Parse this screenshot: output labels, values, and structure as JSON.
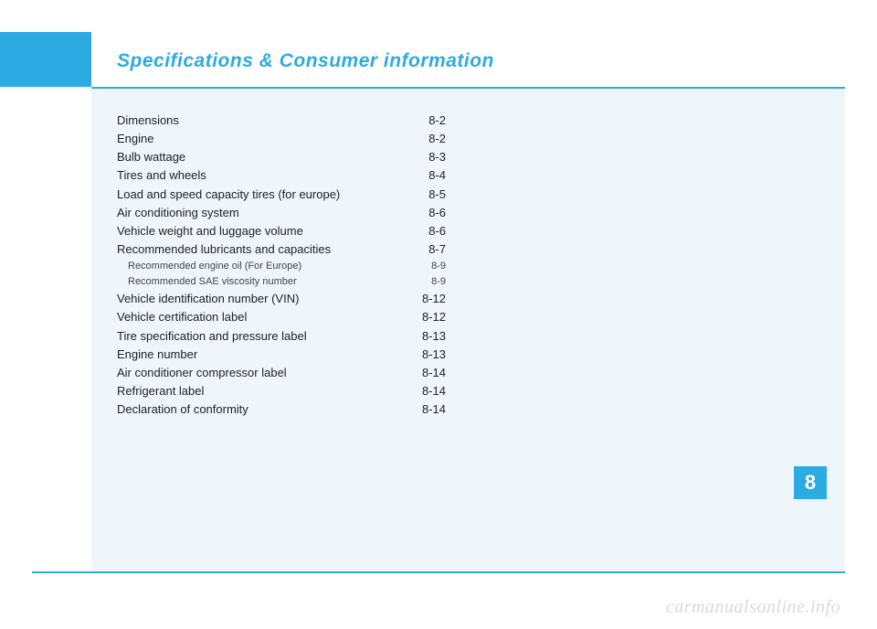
{
  "title": {
    "text": "Specifications & Consumer information",
    "color": "#2cabe3"
  },
  "chapter_badge": "8",
  "colors": {
    "accent": "#2cabe3",
    "content_bg": "#eef6fb",
    "page_bg": "#ffffff",
    "watermark": "#d9d9d9"
  },
  "toc": [
    {
      "label": "Dimensions",
      "page": "8-2",
      "sub": false
    },
    {
      "label": "Engine",
      "page": "8-2",
      "sub": false
    },
    {
      "label": "Bulb wattage",
      "page": "8-3",
      "sub": false
    },
    {
      "label": "Tires and wheels",
      "page": "8-4",
      "sub": false
    },
    {
      "label": "Load and speed capacity tires (for europe)",
      "page": "8-5",
      "sub": false
    },
    {
      "label": "Air conditioning system",
      "page": "8-6",
      "sub": false
    },
    {
      "label": "Vehicle weight and luggage volume",
      "page": "8-6",
      "sub": false
    },
    {
      "label": "Recommended lubricants and capacities",
      "page": "8-7",
      "sub": false
    },
    {
      "label": "Recommended engine oil (For Europe)",
      "page": "8-9",
      "sub": true
    },
    {
      "label": "Recommended SAE viscosity number",
      "page": "8-9",
      "sub": true
    },
    {
      "label": "Vehicle identification number (VIN)",
      "page": "8-12",
      "sub": false
    },
    {
      "label": "Vehicle certification label",
      "page": "8-12",
      "sub": false
    },
    {
      "label": "Tire specification and pressure label",
      "page": "8-13",
      "sub": false
    },
    {
      "label": "Engine number",
      "page": "8-13",
      "sub": false
    },
    {
      "label": "Air conditioner compressor label",
      "page": "8-14",
      "sub": false
    },
    {
      "label": "Refrigerant label",
      "page": "8-14",
      "sub": false
    },
    {
      "label": "Declaration of conformity",
      "page": "8-14",
      "sub": false
    }
  ],
  "watermark": "carmanualsonline.info"
}
